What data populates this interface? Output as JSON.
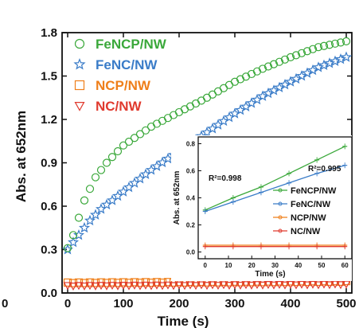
{
  "chart_data": [
    {
      "type": "scatter",
      "xlabel": "Time (s)",
      "ylabel": "Abs. at 652nm",
      "xlim": [
        -10,
        510
      ],
      "ylim": [
        0,
        1.8
      ],
      "xticks": [
        0,
        100,
        200,
        300,
        400,
        500
      ],
      "yticks": [
        0.0,
        0.3,
        0.6,
        0.9,
        1.2,
        1.5,
        1.8
      ],
      "xtick_labels": [
        "0",
        "100",
        "200",
        "300",
        "400",
        "500"
      ],
      "ytick_labels": [
        "0.0",
        "0.3",
        "0.6",
        "0.9",
        "1.2",
        "1.5",
        "1.8"
      ],
      "left_edge_label": "0",
      "legend_position": "top-left",
      "series": [
        {
          "name": "FeNCP/NW",
          "marker": "circle",
          "color": "#3aa83a",
          "x_start": 0,
          "x_step": 10,
          "count": 51,
          "key_points": [
            [
              0,
              0.31
            ],
            [
              10,
              0.4
            ],
            [
              20,
              0.52
            ],
            [
              30,
              0.64
            ],
            [
              50,
              0.8
            ],
            [
              70,
              0.9
            ],
            [
              100,
              1.02
            ],
            [
              150,
              1.15
            ],
            [
              200,
              1.25
            ],
            [
              250,
              1.35
            ],
            [
              300,
              1.46
            ],
            [
              350,
              1.55
            ],
            [
              400,
              1.63
            ],
            [
              450,
              1.7
            ],
            [
              500,
              1.74
            ]
          ]
        },
        {
          "name": "FeNC/NW",
          "marker": "star",
          "color": "#3a7cc8",
          "x_start": 0,
          "x_step": 10,
          "count": 51,
          "key_points": [
            [
              0,
              0.3
            ],
            [
              20,
              0.4
            ],
            [
              40,
              0.5
            ],
            [
              60,
              0.58
            ],
            [
              100,
              0.7
            ],
            [
              150,
              0.85
            ],
            [
              200,
              0.98
            ],
            [
              250,
              1.11
            ],
            [
              300,
              1.24
            ],
            [
              350,
              1.36
            ],
            [
              400,
              1.46
            ],
            [
              450,
              1.56
            ],
            [
              500,
              1.63
            ]
          ]
        },
        {
          "name": "NCP/NW",
          "marker": "square",
          "color": "#ef7f1a",
          "x_start": 0,
          "x_step": 10,
          "count": 51,
          "key_points": [
            [
              0,
              0.07
            ],
            [
              500,
              0.08
            ]
          ]
        },
        {
          "name": "NC/NW",
          "marker": "triangle-down",
          "color": "#e03a2e",
          "x_start": 0,
          "x_step": 10,
          "count": 51,
          "key_points": [
            [
              0,
              0.05
            ],
            [
              500,
              0.06
            ]
          ]
        }
      ]
    },
    {
      "type": "line",
      "inset": true,
      "xlabel": "Time (s)",
      "ylabel": "Abs. at 652nm",
      "xlim": [
        -3,
        63
      ],
      "ylim": [
        -0.05,
        0.85
      ],
      "xticks": [
        0,
        10,
        20,
        30,
        40,
        50,
        60
      ],
      "yticks": [
        0.0,
        0.2,
        0.4,
        0.6,
        0.8
      ],
      "xtick_labels": [
        "0",
        "10",
        "20",
        "30",
        "40",
        "50",
        "60"
      ],
      "ytick_labels": [
        "0.0",
        "0.2",
        "0.4",
        "0.6",
        "0.8"
      ],
      "legend_position": "center-right",
      "annotations": [
        {
          "text": "R²=0.998",
          "color": "#3aa83a"
        },
        {
          "text": "R²=0.995",
          "color": "#3a7cc8"
        }
      ],
      "series": [
        {
          "name": "FeNCP/NW",
          "color": "#3aa83a",
          "x": [
            0,
            12,
            24,
            36,
            48,
            60
          ],
          "y": [
            0.31,
            0.4,
            0.48,
            0.58,
            0.68,
            0.78
          ]
        },
        {
          "name": "FeNC/NW",
          "color": "#3a7cc8",
          "x": [
            0,
            12,
            24,
            36,
            48,
            60
          ],
          "y": [
            0.3,
            0.37,
            0.44,
            0.51,
            0.58,
            0.64
          ]
        },
        {
          "name": "NCP/NW",
          "color": "#ef7f1a",
          "x": [
            0,
            12,
            24,
            36,
            48,
            60
          ],
          "y": [
            0.05,
            0.05,
            0.05,
            0.05,
            0.05,
            0.05
          ]
        },
        {
          "name": "NC/NW",
          "color": "#e03a2e",
          "x": [
            0,
            12,
            24,
            36,
            48,
            60
          ],
          "y": [
            0.04,
            0.04,
            0.04,
            0.04,
            0.04,
            0.04
          ]
        }
      ]
    }
  ]
}
